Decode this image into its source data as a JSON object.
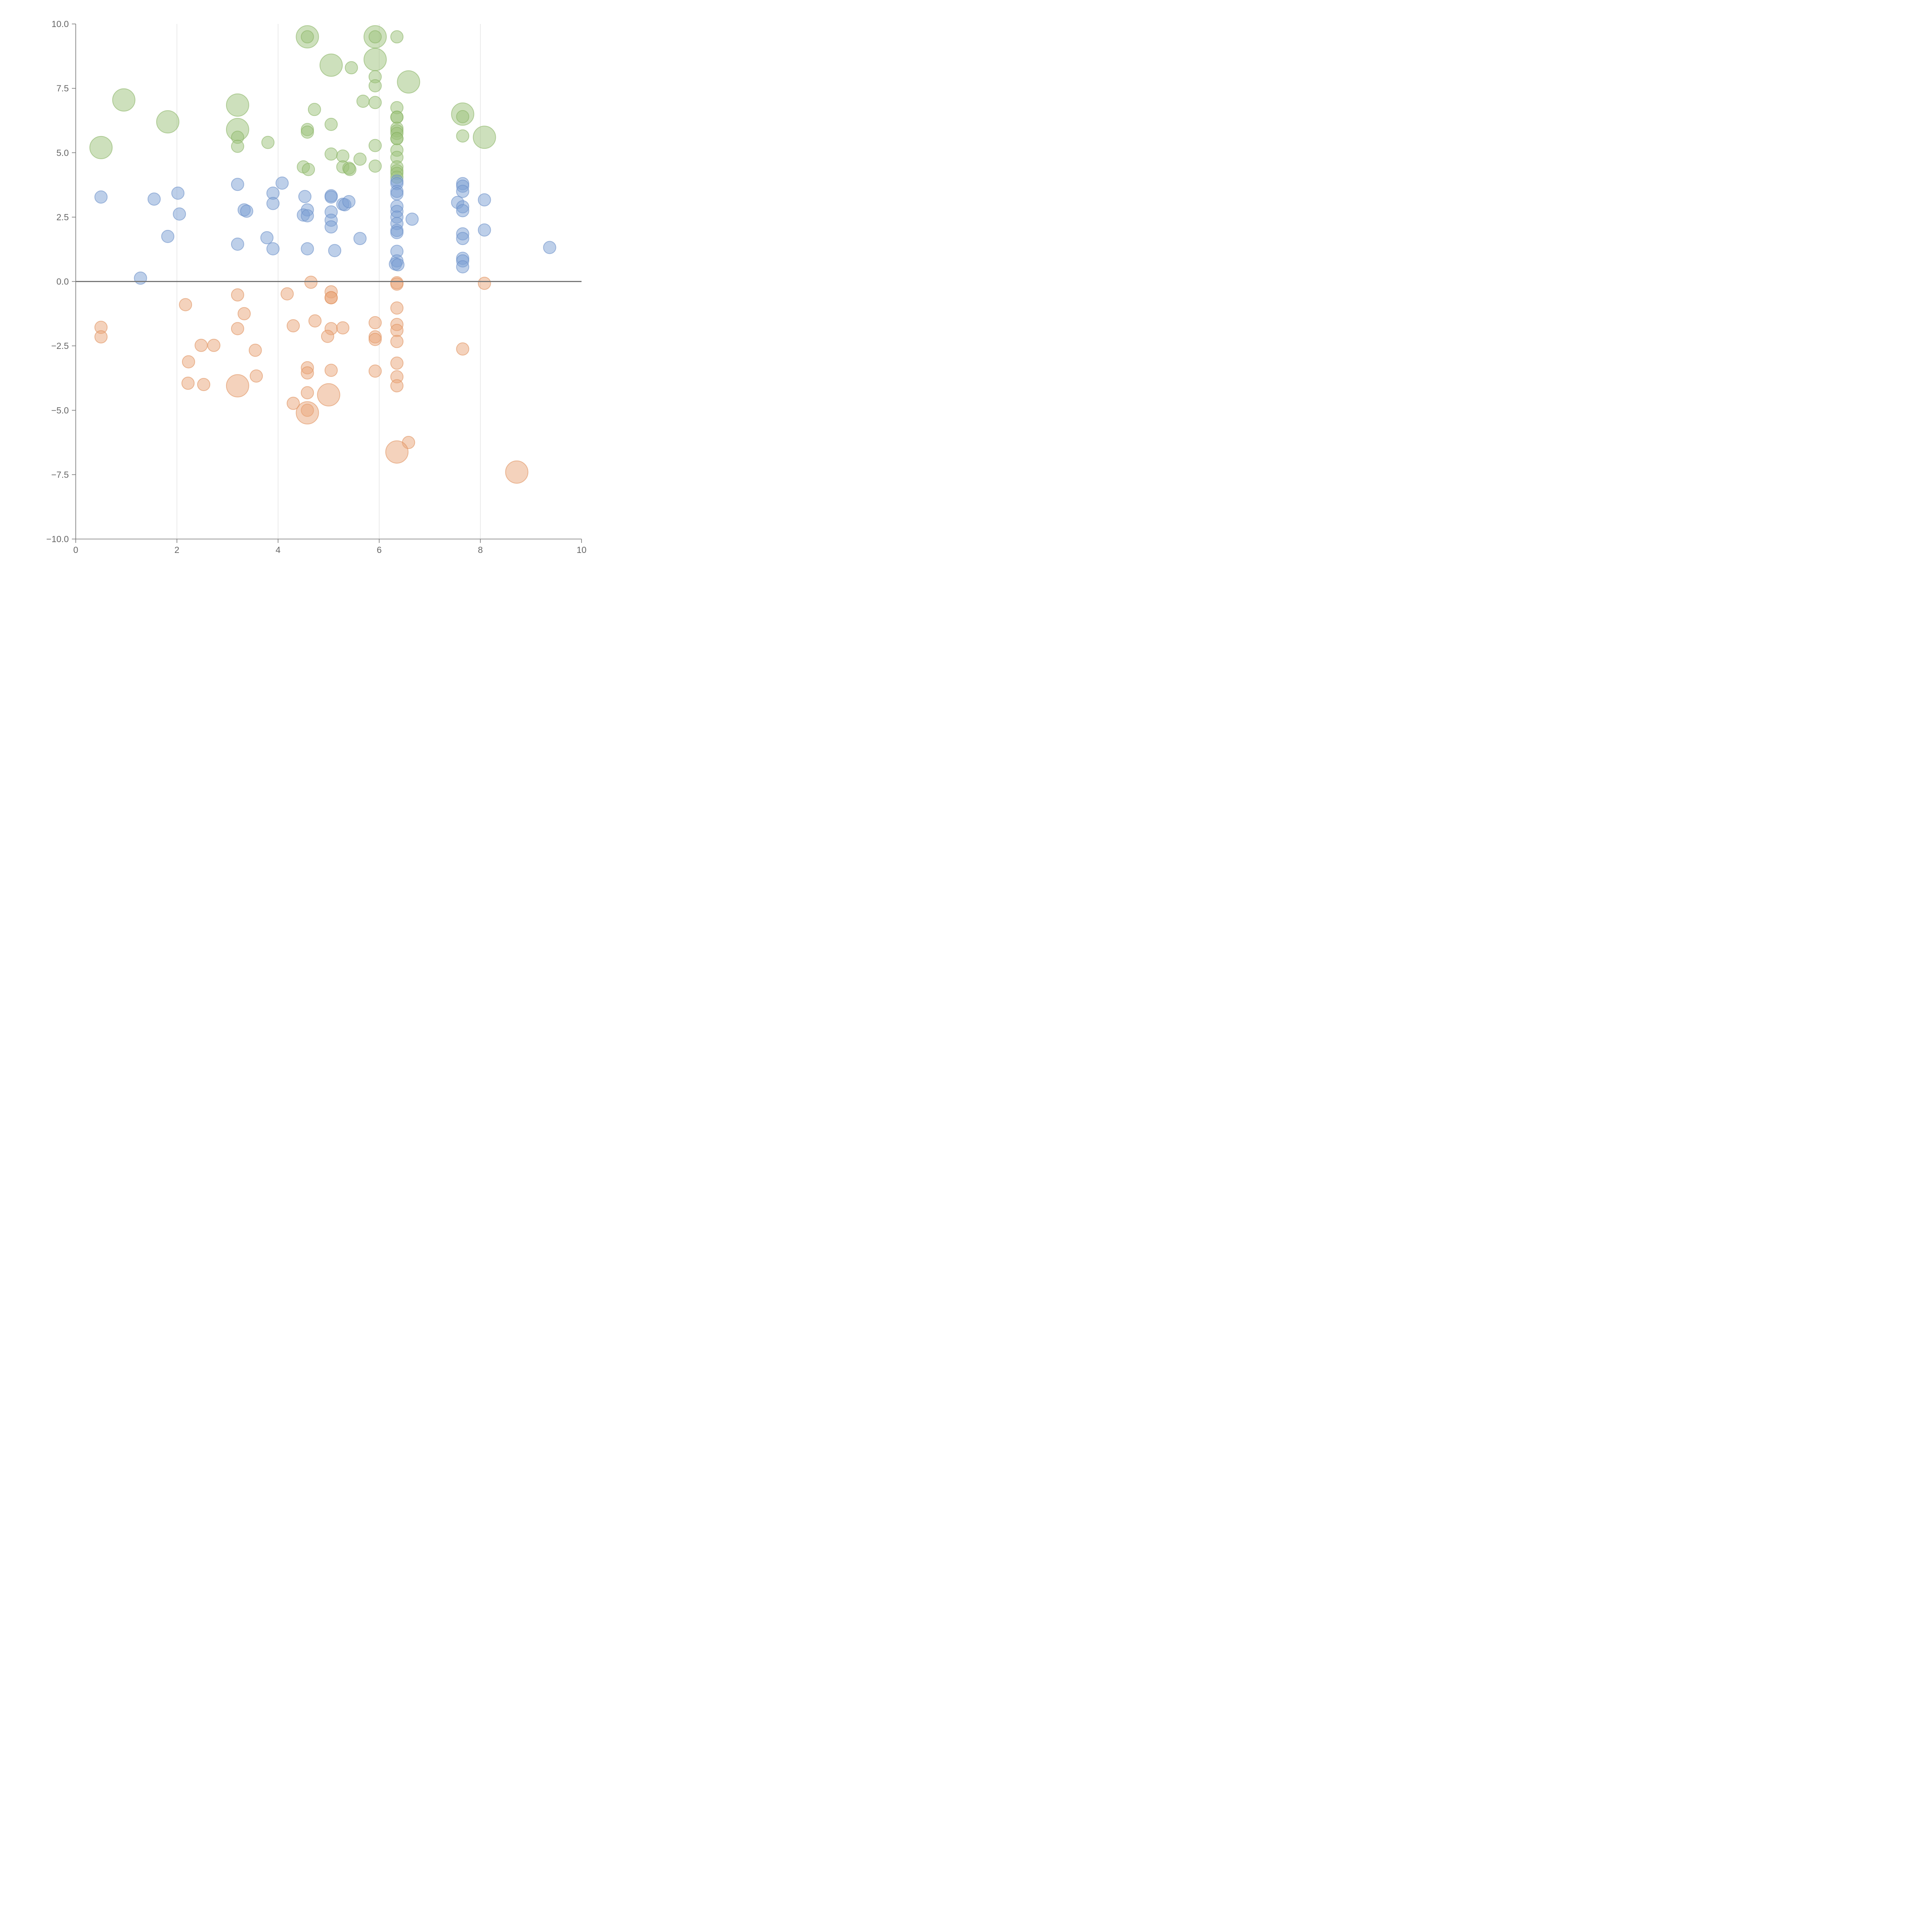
{
  "chart_data": {
    "type": "scatter",
    "title": "",
    "xlabel": "",
    "ylabel": "",
    "xlim": [
      0,
      10
    ],
    "ylim": [
      -10,
      10
    ],
    "x_ticks": [
      "0",
      "2",
      "4",
      "6",
      "8",
      "10"
    ],
    "y_ticks": [
      "10.0",
      "7.5",
      "5.0",
      "2.5",
      "0.0",
      "−2.5",
      "−5.0",
      "−7.5",
      "−10.0"
    ],
    "grid": "vertical",
    "series": [
      {
        "name": "green",
        "color": "#9cc27a",
        "stroke": "#8ab466",
        "points": [
          [
            0.5,
            5.2,
            2
          ],
          [
            0.95,
            7.05,
            2
          ],
          [
            1.82,
            6.2,
            2
          ],
          [
            3.2,
            6.85,
            2
          ],
          [
            3.2,
            5.9,
            2
          ],
          [
            3.2,
            5.6,
            0
          ],
          [
            3.2,
            5.25,
            0
          ],
          [
            3.8,
            5.4,
            0
          ],
          [
            4.58,
            9.5,
            2
          ],
          [
            4.58,
            9.5,
            0
          ],
          [
            4.58,
            5.9,
            0
          ],
          [
            4.58,
            5.8,
            0
          ],
          [
            4.5,
            4.45,
            0
          ],
          [
            4.6,
            4.35,
            0
          ],
          [
            4.72,
            6.68,
            0
          ],
          [
            5.05,
            8.4,
            2
          ],
          [
            5.45,
            8.3,
            0
          ],
          [
            5.05,
            6.1,
            0
          ],
          [
            5.05,
            4.95,
            0
          ],
          [
            5.28,
            4.87,
            0
          ],
          [
            5.28,
            4.45,
            0
          ],
          [
            5.4,
            4.4,
            0
          ],
          [
            5.42,
            4.35,
            0
          ],
          [
            5.62,
            4.75,
            0
          ],
          [
            5.68,
            7.0,
            0
          ],
          [
            5.92,
            9.5,
            2
          ],
          [
            5.92,
            9.5,
            0
          ],
          [
            5.92,
            8.62,
            2
          ],
          [
            5.92,
            7.95,
            0
          ],
          [
            5.92,
            7.6,
            0
          ],
          [
            5.92,
            6.95,
            0
          ],
          [
            5.92,
            5.28,
            0
          ],
          [
            5.92,
            4.48,
            0
          ],
          [
            6.35,
            9.5,
            0
          ],
          [
            6.35,
            6.75,
            0
          ],
          [
            6.35,
            6.38,
            0
          ],
          [
            6.35,
            6.38,
            0
          ],
          [
            6.35,
            5.95,
            0
          ],
          [
            6.35,
            5.85,
            0
          ],
          [
            6.35,
            5.75,
            0
          ],
          [
            6.35,
            5.55,
            0
          ],
          [
            6.35,
            5.55,
            0
          ],
          [
            6.35,
            5.1,
            0
          ],
          [
            6.35,
            4.82,
            0
          ],
          [
            6.35,
            4.45,
            0
          ],
          [
            6.35,
            4.3,
            0
          ],
          [
            6.35,
            4.2,
            0
          ],
          [
            6.35,
            4.05,
            0
          ],
          [
            6.58,
            7.75,
            2
          ],
          [
            7.65,
            6.5,
            2
          ],
          [
            7.65,
            6.4,
            0
          ],
          [
            7.65,
            5.65,
            0
          ],
          [
            8.08,
            5.6,
            2
          ]
        ]
      },
      {
        "name": "blue",
        "color": "#7b9fd4",
        "stroke": "#6a8fc8",
        "points": [
          [
            0.5,
            3.28,
            0
          ],
          [
            1.55,
            3.2,
            0
          ],
          [
            2.02,
            3.43,
            0
          ],
          [
            2.05,
            2.62,
            0
          ],
          [
            1.82,
            1.75,
            0
          ],
          [
            1.28,
            0.13,
            0
          ],
          [
            3.2,
            3.77,
            0
          ],
          [
            3.2,
            1.45,
            0
          ],
          [
            3.33,
            2.78,
            0
          ],
          [
            3.38,
            2.73,
            0
          ],
          [
            3.78,
            1.7,
            0
          ],
          [
            3.9,
            3.43,
            0
          ],
          [
            3.9,
            3.03,
            0
          ],
          [
            3.9,
            1.27,
            0
          ],
          [
            4.08,
            3.82,
            0
          ],
          [
            4.53,
            3.3,
            0
          ],
          [
            4.58,
            2.78,
            0
          ],
          [
            4.5,
            2.58,
            0
          ],
          [
            4.58,
            2.55,
            0
          ],
          [
            4.58,
            1.27,
            0
          ],
          [
            5.05,
            3.33,
            0
          ],
          [
            5.05,
            3.28,
            0
          ],
          [
            5.05,
            2.7,
            0
          ],
          [
            5.05,
            2.38,
            0
          ],
          [
            5.05,
            2.12,
            0
          ],
          [
            5.12,
            1.2,
            0
          ],
          [
            5.28,
            3.0,
            0
          ],
          [
            5.32,
            2.98,
            0
          ],
          [
            5.4,
            3.1,
            0
          ],
          [
            5.62,
            1.67,
            0
          ],
          [
            6.35,
            3.9,
            0
          ],
          [
            6.35,
            3.8,
            0
          ],
          [
            6.35,
            3.5,
            0
          ],
          [
            6.35,
            3.4,
            0
          ],
          [
            6.35,
            2.92,
            0
          ],
          [
            6.35,
            2.72,
            0
          ],
          [
            6.35,
            2.5,
            0
          ],
          [
            6.35,
            2.25,
            0
          ],
          [
            6.35,
            1.98,
            0
          ],
          [
            6.35,
            1.9,
            0
          ],
          [
            6.35,
            1.17,
            0
          ],
          [
            6.35,
            0.8,
            0
          ],
          [
            6.32,
            0.68,
            0
          ],
          [
            6.37,
            0.65,
            0
          ],
          [
            6.65,
            2.42,
            0
          ],
          [
            7.65,
            3.8,
            0
          ],
          [
            7.65,
            3.7,
            0
          ],
          [
            7.65,
            3.5,
            0
          ],
          [
            7.55,
            3.07,
            0
          ],
          [
            7.65,
            2.9,
            0
          ],
          [
            7.65,
            2.75,
            0
          ],
          [
            7.65,
            1.85,
            0
          ],
          [
            7.65,
            1.67,
            0
          ],
          [
            7.65,
            0.9,
            0
          ],
          [
            7.65,
            0.8,
            0
          ],
          [
            7.65,
            0.57,
            0
          ],
          [
            8.08,
            3.17,
            0
          ],
          [
            8.08,
            2.0,
            0
          ],
          [
            9.37,
            1.32,
            0
          ]
        ]
      },
      {
        "name": "orange",
        "color": "#eaa67a",
        "stroke": "#e0915e",
        "points": [
          [
            0.5,
            -1.78,
            0
          ],
          [
            0.5,
            -2.15,
            0
          ],
          [
            2.17,
            -0.9,
            0
          ],
          [
            2.48,
            -2.48,
            0
          ],
          [
            2.73,
            -2.48,
            0
          ],
          [
            2.23,
            -3.12,
            0
          ],
          [
            2.22,
            -3.95,
            0
          ],
          [
            2.53,
            -4.0,
            0
          ],
          [
            3.2,
            -0.52,
            0
          ],
          [
            3.33,
            -1.25,
            0
          ],
          [
            3.2,
            -1.83,
            0
          ],
          [
            3.55,
            -2.67,
            0
          ],
          [
            3.57,
            -3.67,
            0
          ],
          [
            3.2,
            -4.05,
            2
          ],
          [
            4.18,
            -0.48,
            0
          ],
          [
            4.3,
            -1.72,
            0
          ],
          [
            4.3,
            -4.73,
            0
          ],
          [
            4.65,
            -0.03,
            0
          ],
          [
            4.73,
            -1.53,
            0
          ],
          [
            4.58,
            -3.35,
            0
          ],
          [
            4.58,
            -3.55,
            0
          ],
          [
            4.58,
            -4.32,
            0
          ],
          [
            4.58,
            -5.0,
            0
          ],
          [
            4.58,
            -5.1,
            2
          ],
          [
            5.05,
            -0.4,
            0
          ],
          [
            5.05,
            -0.63,
            0
          ],
          [
            5.05,
            -0.63,
            0
          ],
          [
            5.05,
            -1.83,
            0
          ],
          [
            4.98,
            -2.13,
            0
          ],
          [
            5.05,
            -3.45,
            0
          ],
          [
            5.28,
            -1.8,
            0
          ],
          [
            5.0,
            -4.4,
            2
          ],
          [
            5.92,
            -1.6,
            0
          ],
          [
            5.92,
            -2.15,
            0
          ],
          [
            5.92,
            -2.25,
            0
          ],
          [
            5.92,
            -3.48,
            0
          ],
          [
            6.35,
            -0.05,
            0
          ],
          [
            6.35,
            -0.1,
            0
          ],
          [
            6.35,
            -1.03,
            0
          ],
          [
            6.35,
            -1.67,
            0
          ],
          [
            6.35,
            -1.9,
            0
          ],
          [
            6.35,
            -2.33,
            0
          ],
          [
            6.35,
            -3.17,
            0
          ],
          [
            6.35,
            -3.7,
            0
          ],
          [
            6.35,
            -4.05,
            0
          ],
          [
            6.58,
            -6.25,
            0
          ],
          [
            6.35,
            -6.62,
            2
          ],
          [
            7.65,
            -2.62,
            0
          ],
          [
            8.08,
            -0.07,
            0
          ],
          [
            8.72,
            -7.4,
            2
          ]
        ]
      }
    ],
    "size_classes": [
      "small",
      "medium",
      "large"
    ]
  }
}
